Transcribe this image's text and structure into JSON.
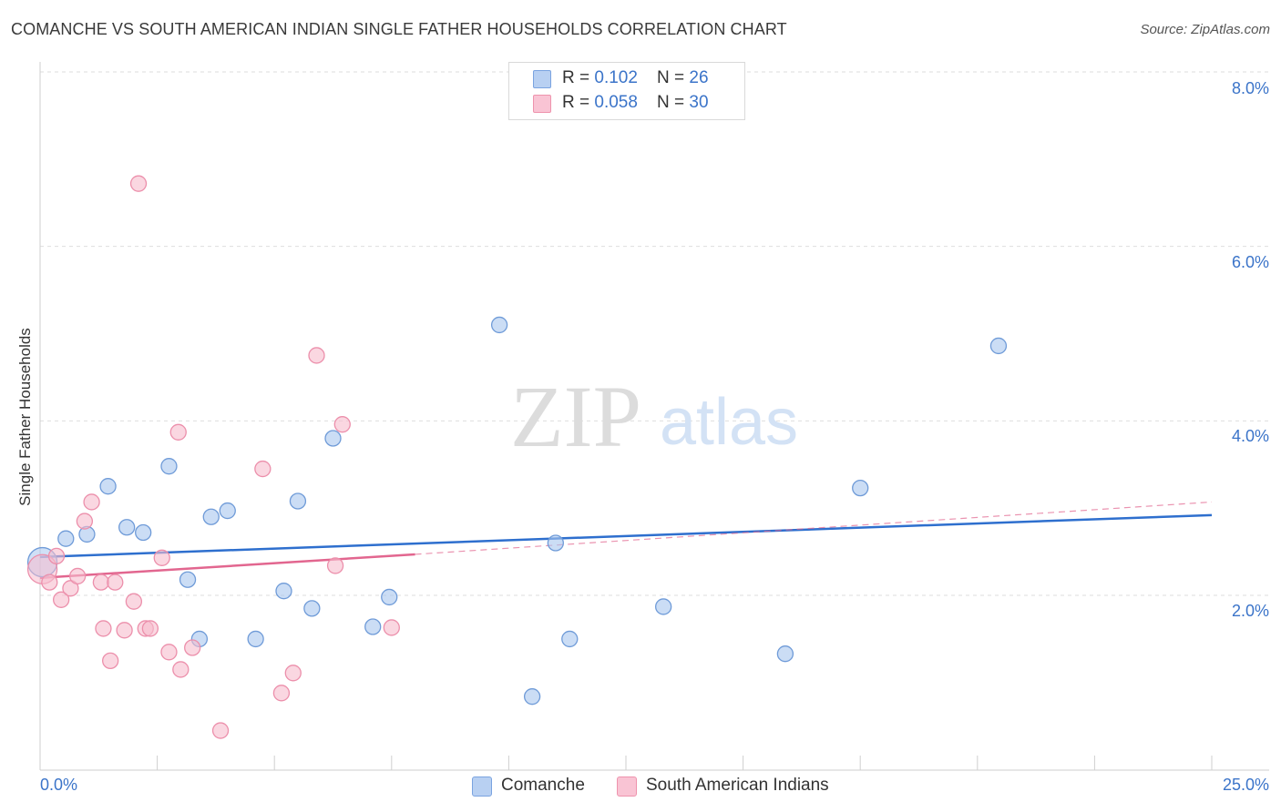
{
  "header": {
    "title": "COMANCHE VS SOUTH AMERICAN INDIAN SINGLE FATHER HOUSEHOLDS CORRELATION CHART",
    "source": "Source: ZipAtlas.com"
  },
  "watermark": {
    "zip": "ZIP",
    "atlas": "atlas"
  },
  "legend": {
    "rows": [
      {
        "r_label": "R = ",
        "r_value": "0.102",
        "n_label": "N = ",
        "n_value": "26",
        "color": "#b8d0f2",
        "border": "#7aa3e0"
      },
      {
        "r_label": "R = ",
        "r_value": "0.058",
        "n_label": "N = ",
        "n_value": "30",
        "color": "#f9c4d4",
        "border": "#ee93ad"
      }
    ]
  },
  "chart_data": {
    "type": "scatter",
    "title": "COMANCHE VS SOUTH AMERICAN INDIAN SINGLE FATHER HOUSEHOLDS CORRELATION CHART",
    "xlabel": "",
    "ylabel": "Single Father Households",
    "xlim": [
      0,
      25
    ],
    "ylim": [
      0,
      8.4
    ],
    "x_tick_labels": [
      "0.0%",
      "25.0%"
    ],
    "y_ticks": [
      2,
      4,
      6,
      8
    ],
    "y_tick_labels": [
      "2.0%",
      "4.0%",
      "6.0%",
      "8.0%"
    ],
    "grid": true,
    "legend_position": "top-center",
    "series": [
      {
        "name": "Comanche",
        "color": "#a9c7ef",
        "stroke": "#6f9bd8",
        "line_color": "#2e6fce",
        "trend": {
          "x": [
            0,
            25
          ],
          "y": [
            2.44,
            2.92
          ]
        },
        "points": [
          {
            "x": 0.05,
            "y": 2.38,
            "big": true
          },
          {
            "x": 0.55,
            "y": 2.65
          },
          {
            "x": 1.0,
            "y": 2.7
          },
          {
            "x": 1.45,
            "y": 3.25
          },
          {
            "x": 1.85,
            "y": 2.78
          },
          {
            "x": 2.2,
            "y": 2.72
          },
          {
            "x": 2.75,
            "y": 3.48
          },
          {
            "x": 3.15,
            "y": 2.18
          },
          {
            "x": 3.4,
            "y": 1.5
          },
          {
            "x": 3.65,
            "y": 2.9
          },
          {
            "x": 4.0,
            "y": 2.97
          },
          {
            "x": 4.6,
            "y": 1.5
          },
          {
            "x": 5.2,
            "y": 2.05
          },
          {
            "x": 5.5,
            "y": 3.08
          },
          {
            "x": 5.8,
            "y": 1.85
          },
          {
            "x": 6.25,
            "y": 3.8
          },
          {
            "x": 7.1,
            "y": 1.64
          },
          {
            "x": 7.45,
            "y": 1.98
          },
          {
            "x": 9.8,
            "y": 5.1
          },
          {
            "x": 10.5,
            "y": 0.84
          },
          {
            "x": 11.0,
            "y": 2.6
          },
          {
            "x": 11.3,
            "y": 1.5
          },
          {
            "x": 13.3,
            "y": 1.87
          },
          {
            "x": 15.9,
            "y": 1.33
          },
          {
            "x": 17.5,
            "y": 3.23
          },
          {
            "x": 20.45,
            "y": 4.86
          }
        ]
      },
      {
        "name": "South American Indians",
        "color": "#f7bccd",
        "stroke": "#ec8fab",
        "line_color": "#e2668f",
        "trend": {
          "x": [
            0,
            8
          ],
          "y": [
            2.2,
            2.47
          ]
        },
        "trend_dashed": {
          "x": [
            8,
            25
          ],
          "y": [
            2.47,
            3.07
          ]
        },
        "points": [
          {
            "x": 0.05,
            "y": 2.3,
            "big": true
          },
          {
            "x": 0.2,
            "y": 2.15
          },
          {
            "x": 0.35,
            "y": 2.45
          },
          {
            "x": 0.45,
            "y": 1.95
          },
          {
            "x": 0.65,
            "y": 2.08
          },
          {
            "x": 0.8,
            "y": 2.22
          },
          {
            "x": 0.95,
            "y": 2.85
          },
          {
            "x": 1.1,
            "y": 3.07
          },
          {
            "x": 1.3,
            "y": 2.15
          },
          {
            "x": 1.35,
            "y": 1.62
          },
          {
            "x": 1.5,
            "y": 1.25
          },
          {
            "x": 1.6,
            "y": 2.15
          },
          {
            "x": 1.8,
            "y": 1.6
          },
          {
            "x": 2.0,
            "y": 1.93
          },
          {
            "x": 2.1,
            "y": 6.72
          },
          {
            "x": 2.25,
            "y": 1.62
          },
          {
            "x": 2.35,
            "y": 1.62
          },
          {
            "x": 2.6,
            "y": 2.43
          },
          {
            "x": 2.75,
            "y": 1.35
          },
          {
            "x": 2.95,
            "y": 3.87
          },
          {
            "x": 3.0,
            "y": 1.15
          },
          {
            "x": 3.25,
            "y": 1.4
          },
          {
            "x": 3.85,
            "y": 0.45
          },
          {
            "x": 4.75,
            "y": 3.45
          },
          {
            "x": 5.15,
            "y": 0.88
          },
          {
            "x": 5.4,
            "y": 1.11
          },
          {
            "x": 5.9,
            "y": 4.75
          },
          {
            "x": 6.3,
            "y": 2.34
          },
          {
            "x": 6.45,
            "y": 3.96
          },
          {
            "x": 7.5,
            "y": 1.63
          }
        ]
      }
    ]
  }
}
